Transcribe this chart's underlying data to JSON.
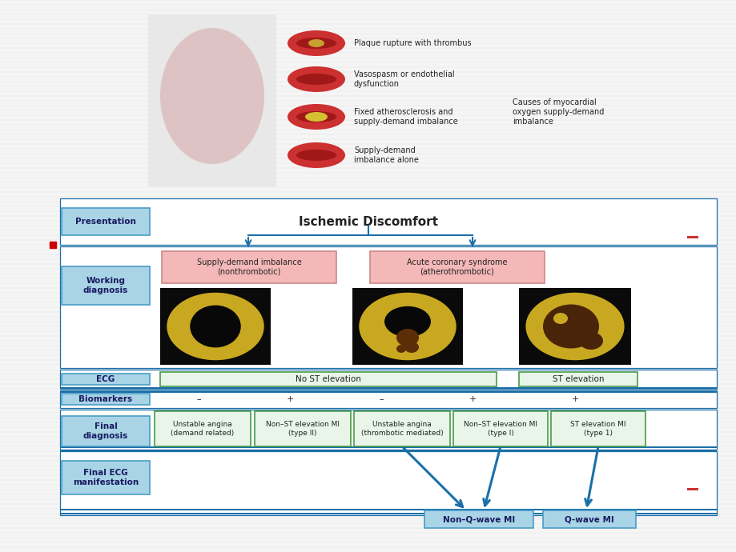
{
  "bg_color": "#f0f0f0",
  "title": "Ischemic Discomfort",
  "presentation_label": "Presentation",
  "working_diagnosis_label": "Working\ndiagnosis",
  "ecg_label": "ECG",
  "biomarkers_label": "Biomarkers",
  "final_diagnosis_label": "Final\ndiagnosis",
  "final_ecg_label": "Final ECG\nmanifestation",
  "supply_demand_box": "Supply-demand imbalance\n(nonthrombotic)",
  "acs_box": "Acute coronary syndrome\n(atherothrombotic)",
  "no_st_elevation": "No ST elevation",
  "st_elevation": "ST elevation",
  "biomarkers_values": [
    "–",
    "+",
    "–",
    "+",
    "+"
  ],
  "final_dx": [
    "Unstable angina\n(demand related)",
    "Non–ST elevation MI\n(type II)",
    "Unstable angina\n(thrombotic mediated)",
    "Non–ST elevation MI\n(type I)",
    "ST elevation MI\n(type 1)"
  ],
  "non_q_wave": "Non–Q-wave MI",
  "q_wave": "Q-wave MI",
  "causes_text": "Causes of myocardial\noxygen supply-demand\nimbalance",
  "artery_labels": [
    "Plaque rupture with thrombus",
    "Vasospasm or endothelial\ndysfunction",
    "Fixed atherosclerosis and\nsupply-demand imbalance",
    "Supply-demand\nimbalance alone"
  ],
  "label_box_color": "#a8d4e6",
  "label_box_border": "#4a9cc7",
  "pink_box_color": "#f5b8b8",
  "pink_box_border": "#cc8888",
  "green_box_color": "#c8e6c8",
  "green_box_border": "#4a9a4a",
  "arrow_color": "#1a6fa8",
  "blue_border_color": "#1a6fa8",
  "separator_color": "#1a6fa8",
  "text_color": "#222222",
  "small_font": 7,
  "med_font": 8,
  "large_font": 11
}
